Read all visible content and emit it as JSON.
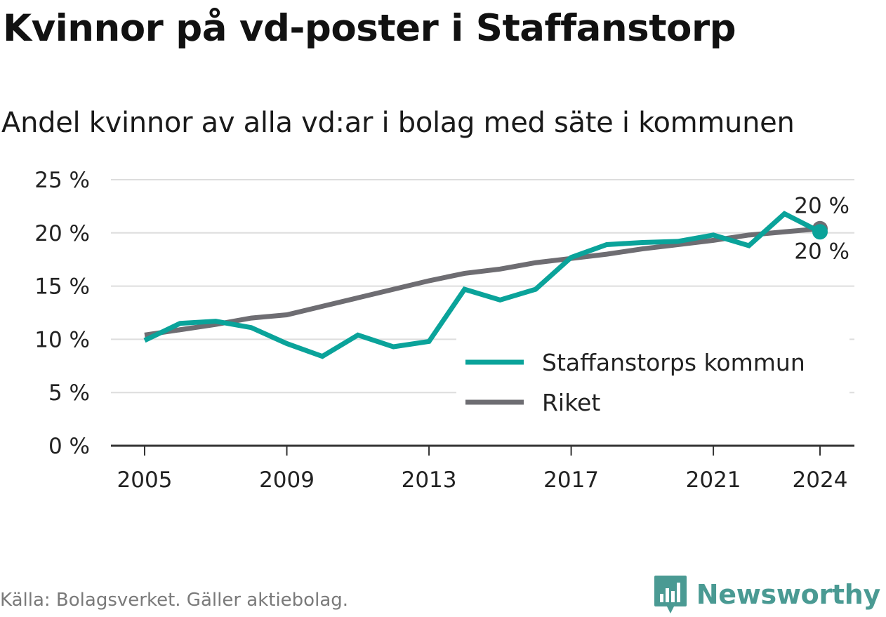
{
  "title": "Kvinnor på vd-poster i Staffanstorp",
  "subtitle": "Andel kvinnor av alla vd:ar i bolag med säte i kommunen",
  "source": "Källa: Bolagsverket. Gäller aktiebolag.",
  "brand": "Newsworthy",
  "colors": {
    "staffanstorp": "#0aa39a",
    "riket": "#6e6d72",
    "grid": "#dddddd",
    "axis": "#333333"
  },
  "chart_data": {
    "type": "line",
    "x": [
      2005,
      2006,
      2007,
      2008,
      2009,
      2010,
      2011,
      2012,
      2013,
      2014,
      2015,
      2016,
      2017,
      2018,
      2019,
      2020,
      2021,
      2022,
      2023,
      2024
    ],
    "series": [
      {
        "name": "Staffanstorps kommun",
        "color": "#0aa39a",
        "values": [
          9.9,
          11.5,
          11.7,
          11.1,
          9.6,
          8.4,
          10.4,
          9.3,
          9.8,
          14.7,
          13.7,
          14.7,
          17.7,
          18.9,
          19.1,
          19.2,
          19.8,
          18.8,
          21.8,
          20.1
        ]
      },
      {
        "name": "Riket",
        "color": "#6e6d72",
        "values": [
          10.4,
          10.9,
          11.4,
          12.0,
          12.3,
          13.1,
          13.9,
          14.7,
          15.5,
          16.2,
          16.6,
          17.2,
          17.6,
          18.0,
          18.5,
          18.9,
          19.3,
          19.8,
          20.1,
          20.4
        ]
      }
    ],
    "end_labels": [
      "20 %",
      "20 %"
    ],
    "y_ticks": [
      "0 %",
      "5 %",
      "10 %",
      "15 %",
      "20 %",
      "25 %"
    ],
    "x_ticks": [
      "2005",
      "2009",
      "2013",
      "2017",
      "2021",
      "2024"
    ],
    "ylim": [
      0,
      25
    ],
    "grid": true,
    "legend": "bottom-right"
  }
}
